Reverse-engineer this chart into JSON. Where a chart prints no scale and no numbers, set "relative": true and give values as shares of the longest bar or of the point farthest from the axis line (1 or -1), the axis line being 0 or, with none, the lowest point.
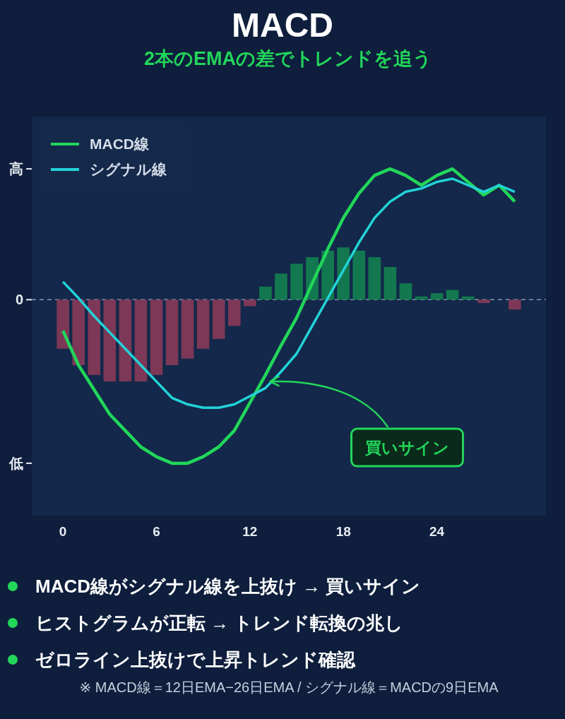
{
  "chart_data": {
    "type": "line",
    "title": "MACD",
    "subtitle": "2本のEMAの差でトレンドを追う",
    "x": [
      0,
      1,
      2,
      3,
      4,
      5,
      6,
      7,
      8,
      9,
      10,
      11,
      12,
      13,
      14,
      15,
      16,
      17,
      18,
      19,
      20,
      21,
      22,
      23,
      24,
      25,
      26,
      27,
      28,
      29
    ],
    "series": [
      {
        "type": "bar",
        "colors": [
          "#7c3856",
          "#7c3856",
          "#7c3856",
          "#7c3856",
          "#7c3856",
          "#7c3856",
          "#7c3856",
          "#7c3856",
          "#7c3856",
          "#7c3856",
          "#7c3856",
          "#7c3856",
          "#7c3856",
          "#13784f",
          "#13784f",
          "#13784f",
          "#13784f",
          "#13784f",
          "#13784f",
          "#13784f",
          "#13784f",
          "#13784f",
          "#13784f",
          "#13784f",
          "#13784f",
          "#13784f",
          "#13784f",
          "#7c3856",
          null,
          "#7c3856"
        ],
        "values": [
          -0.3,
          -0.4,
          -0.46,
          -0.5,
          -0.5,
          -0.5,
          -0.46,
          -0.4,
          -0.36,
          -0.3,
          -0.24,
          -0.16,
          -0.04,
          0.08,
          0.16,
          0.22,
          0.26,
          0.3,
          0.32,
          0.3,
          0.26,
          0.2,
          0.1,
          0.02,
          0.04,
          0.06,
          0.02,
          -0.02,
          null,
          -0.06
        ]
      },
      {
        "name": "MACD線",
        "color": "#22d65a",
        "values": [
          -0.19,
          -0.4,
          -0.55,
          -0.7,
          -0.8,
          -0.9,
          -0.96,
          -1,
          -1,
          -0.96,
          -0.9,
          -0.8,
          -0.63,
          -0.46,
          -0.28,
          -0.11,
          0.1,
          0.31,
          0.5,
          0.65,
          0.76,
          0.8,
          0.76,
          0.7,
          0.76,
          0.8,
          0.72,
          0.64,
          0.7,
          0.6
        ]
      },
      {
        "name": "シグナル線",
        "color": "#22d3d8",
        "values": [
          0.11,
          0.01,
          -0.1,
          -0.2,
          -0.3,
          -0.4,
          -0.5,
          -0.6,
          -0.64,
          -0.66,
          -0.66,
          -0.64,
          -0.59,
          -0.54,
          -0.44,
          -0.33,
          -0.16,
          0.01,
          0.18,
          0.35,
          0.5,
          0.6,
          0.66,
          0.68,
          0.72,
          0.74,
          0.7,
          0.66,
          0.7,
          0.66
        ]
      }
    ],
    "relative": true,
    "xlim": [
      -2,
      31
    ],
    "xticks": [
      0,
      6,
      12,
      18,
      24
    ],
    "ref_lines": [
      {
        "axis": "y",
        "value": 0,
        "label": "0",
        "line_style": "dashed",
        "color": "#8394ad"
      }
    ],
    "legend": "top left",
    "annotations": [
      "高",
      "低",
      {
        "text": "買いサイン",
        "x": 13.3,
        "y": -0.5
      },
      "MACD線がシグナル線を上抜け → 買いサイン",
      "ヒストグラムが正転 → トレンド転換の兆し",
      "ゼロライン上抜けで上昇トレンド確認",
      "※ MACD線＝12日EMA−26日EMA / シグナル線＝MACDの9日EMA"
    ]
  }
}
